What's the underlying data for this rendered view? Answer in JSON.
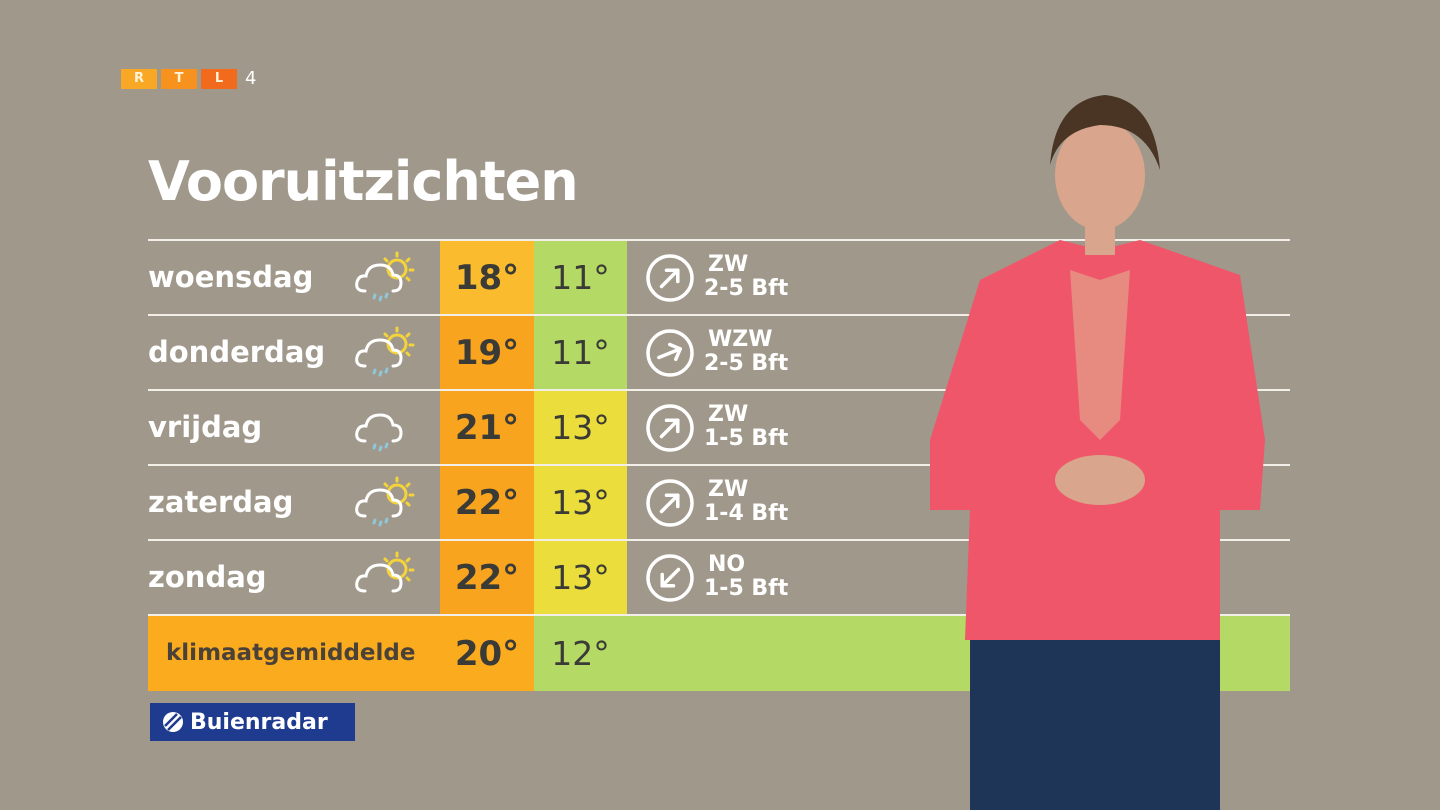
{
  "logo": {
    "letters": [
      "R",
      "T",
      "L"
    ],
    "channel": "4",
    "colors": [
      "#f9a825",
      "#f7921e",
      "#f26a1b"
    ]
  },
  "title": "Vooruitzichten",
  "forecast": [
    {
      "day": "woensdag",
      "icon": "cloud-sun-rain",
      "max": "18°",
      "min": "11°",
      "max_color": "#fbbb2e",
      "min_color": "#b4d964",
      "wind_dir": "ZW",
      "wind_force": "2-5 Bft"
    },
    {
      "day": "donderdag",
      "icon": "cloud-sun-rain",
      "max": "19°",
      "min": "11°",
      "max_color": "#f9a41e",
      "min_color": "#b4d964",
      "wind_dir": "WZW",
      "wind_force": "2-5 Bft"
    },
    {
      "day": "vrijdag",
      "icon": "cloud-rain",
      "max": "21°",
      "min": "13°",
      "max_color": "#f9a41e",
      "min_color": "#ebdd3c",
      "wind_dir": "ZW",
      "wind_force": "1-5 Bft"
    },
    {
      "day": "zaterdag",
      "icon": "cloud-sun-rain",
      "max": "22°",
      "min": "13°",
      "max_color": "#f9a41e",
      "min_color": "#ebdd3c",
      "wind_dir": "ZW",
      "wind_force": "1-4 Bft"
    },
    {
      "day": "zondag",
      "icon": "cloud-sun",
      "max": "22°",
      "min": "13°",
      "max_color": "#f9a41e",
      "min_color": "#ebdd3c",
      "wind_dir": "NO",
      "wind_force": "1-5 Bft"
    }
  ],
  "climate": {
    "label": "klimaatgemiddelde",
    "max": "20°",
    "min": "12°"
  },
  "sponsor": {
    "name": "Buienradar",
    "color": "#1f3b8f"
  }
}
